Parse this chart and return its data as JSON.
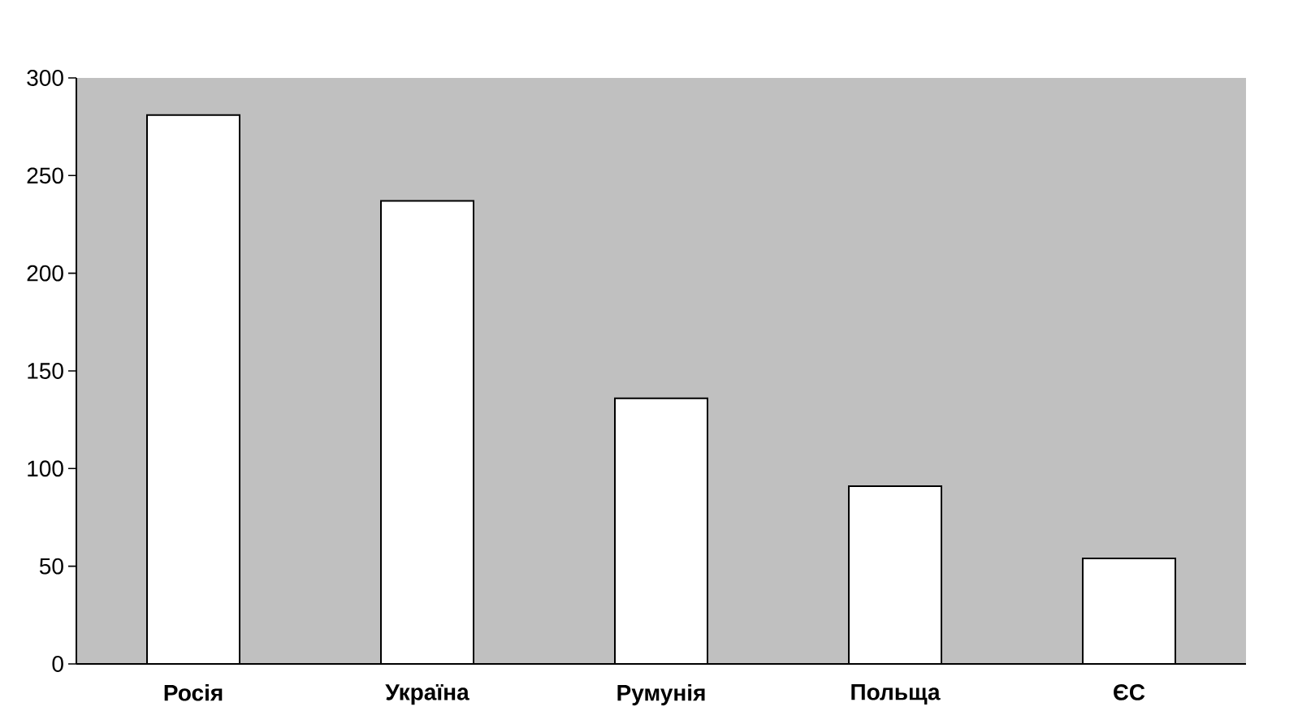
{
  "chart_data": {
    "type": "bar",
    "categories": [
      "Росія",
      "Україна",
      "Румунія",
      "Польща",
      "ЄС"
    ],
    "values": [
      281,
      237,
      136,
      91,
      54
    ],
    "color": "#ffffff",
    "ylim": [
      0,
      300
    ],
    "yticks": [
      0,
      50,
      100,
      150,
      200,
      250,
      300
    ]
  }
}
